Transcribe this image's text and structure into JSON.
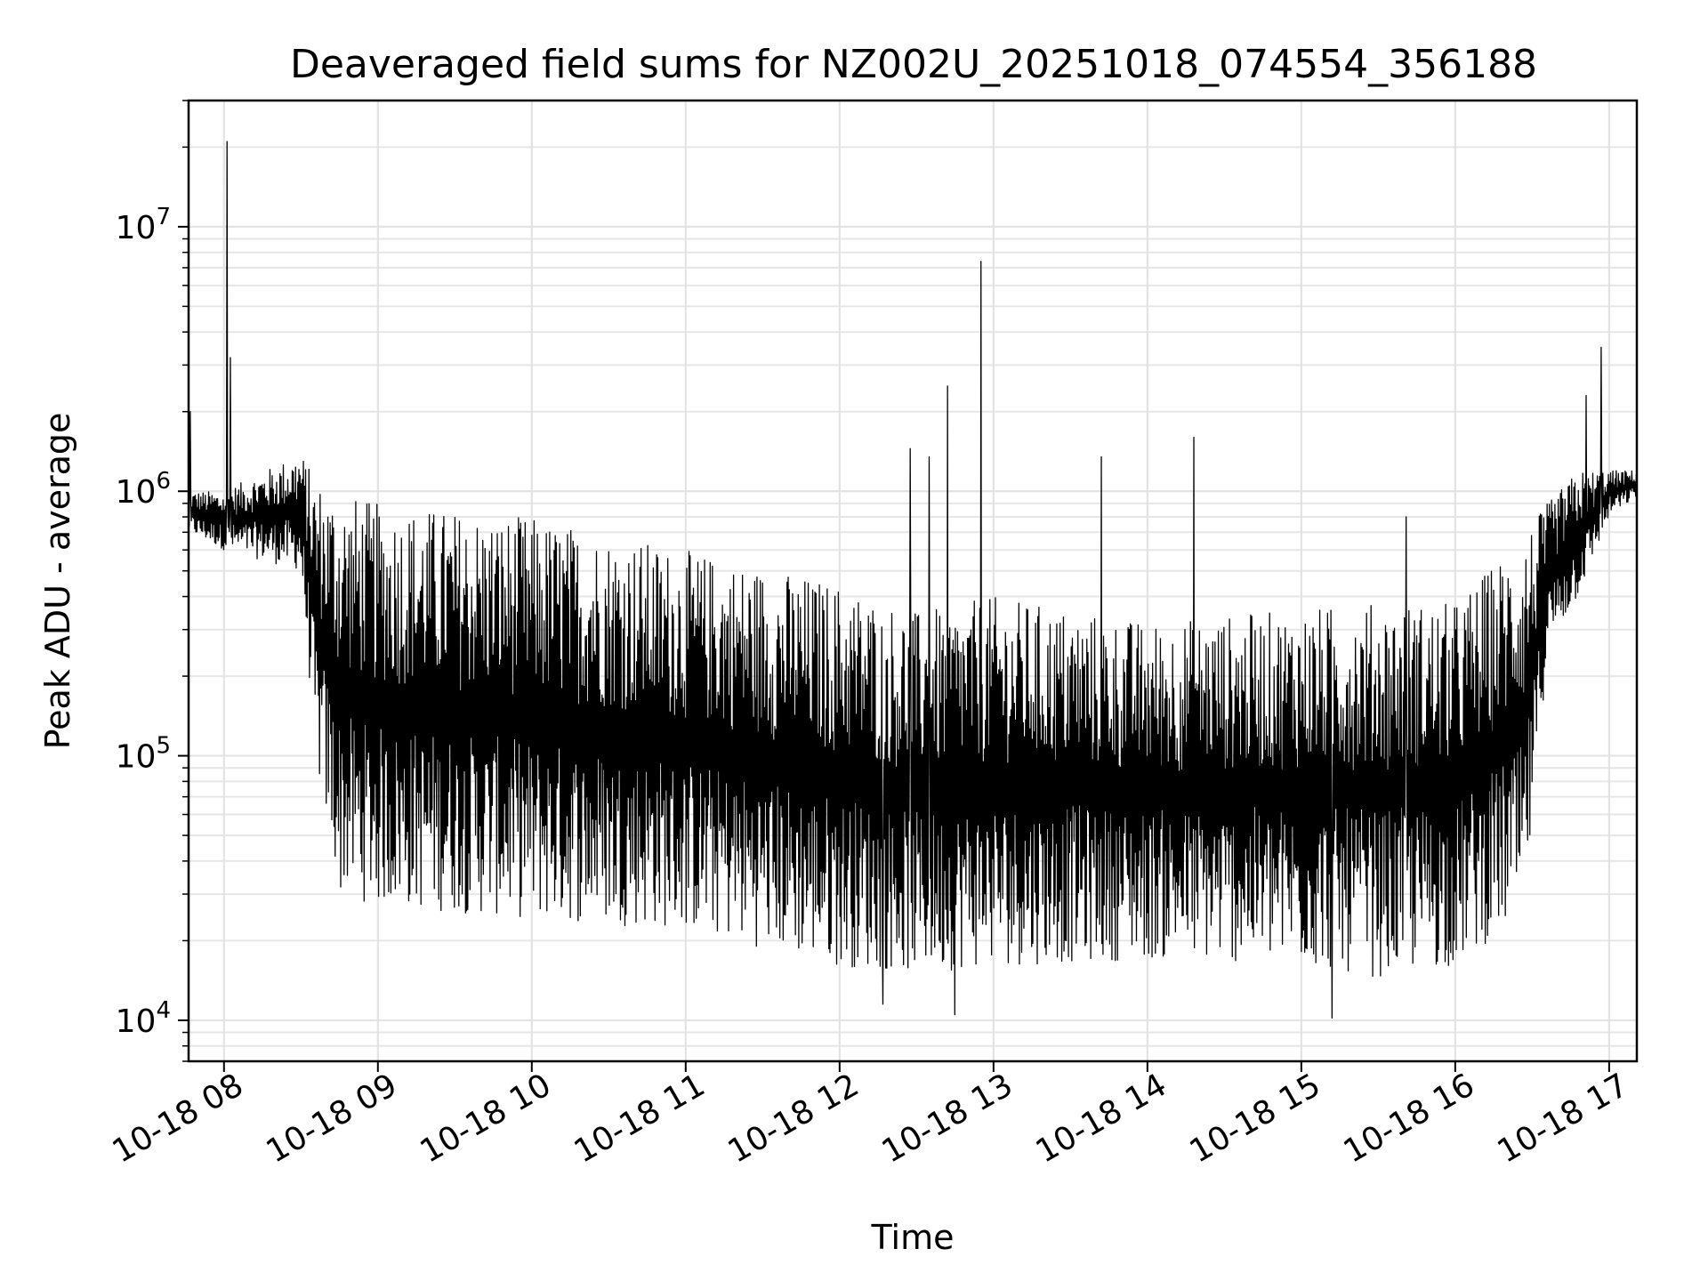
{
  "chart_data": {
    "type": "line",
    "title": "Deaveraged field sums for NZ002U_20251018_074554_356188",
    "xlabel": "Time",
    "ylabel": "Peak ADU - average",
    "yscale": "log",
    "ylim": [
      7000,
      30000000
    ],
    "xlim_hours": [
      7.77,
      17.18
    ],
    "grid": true,
    "series_color": "#000000",
    "x_ticks": [
      {
        "hour": 8,
        "label": "10-18 08"
      },
      {
        "hour": 9,
        "label": "10-18 09"
      },
      {
        "hour": 10,
        "label": "10-18 10"
      },
      {
        "hour": 11,
        "label": "10-18 11"
      },
      {
        "hour": 12,
        "label": "10-18 12"
      },
      {
        "hour": 13,
        "label": "10-18 13"
      },
      {
        "hour": 14,
        "label": "10-18 14"
      },
      {
        "hour": 15,
        "label": "10-18 15"
      },
      {
        "hour": 16,
        "label": "10-18 16"
      },
      {
        "hour": 17,
        "label": "10-18 17"
      }
    ],
    "y_ticks": [
      {
        "value": 10000,
        "base": "10",
        "exp": "4"
      },
      {
        "value": 100000,
        "base": "10",
        "exp": "5"
      },
      {
        "value": 1000000,
        "base": "10",
        "exp": "6"
      },
      {
        "value": 10000000,
        "base": "10",
        "exp": "7"
      }
    ],
    "series": [
      {
        "name": "deaveraged field sums",
        "envelope_hours": [
          7.77,
          8.0,
          8.5,
          8.6,
          8.75,
          9.0,
          10.0,
          11.0,
          12.0,
          12.5,
          13.0,
          14.0,
          15.0,
          15.5,
          16.0,
          16.45,
          16.6,
          16.8,
          17.0,
          17.18
        ],
        "upper_envelope": [
          1000000,
          1000000,
          1400000,
          1100000,
          1000000,
          900000,
          800000,
          600000,
          450000,
          350000,
          400000,
          320000,
          360000,
          380000,
          380000,
          700000,
          900000,
          1200000,
          1200000,
          1200000
        ],
        "lower_envelope": [
          700000,
          600000,
          500000,
          90000,
          30000,
          27000,
          24000,
          22000,
          16000,
          15000,
          16000,
          17000,
          16000,
          14500,
          16000,
          25000,
          250000,
          400000,
          800000,
          950000
        ],
        "spikes": [
          {
            "hour": 8.02,
            "value": 21000000
          },
          {
            "hour": 8.04,
            "value": 3200000
          },
          {
            "hour": 7.78,
            "value": 2000000
          },
          {
            "hour": 12.92,
            "value": 7400000
          },
          {
            "hour": 12.7,
            "value": 2500000
          },
          {
            "hour": 12.46,
            "value": 1450000
          },
          {
            "hour": 12.58,
            "value": 1350000
          },
          {
            "hour": 13.7,
            "value": 1350000
          },
          {
            "hour": 14.3,
            "value": 1600000
          },
          {
            "hour": 16.95,
            "value": 3500000
          },
          {
            "hour": 16.85,
            "value": 2300000
          },
          {
            "hour": 15.68,
            "value": 800000
          },
          {
            "hour": 12.75,
            "value": 10500
          },
          {
            "hour": 15.2,
            "value": 10200
          },
          {
            "hour": 12.28,
            "value": 11500
          }
        ]
      }
    ]
  }
}
